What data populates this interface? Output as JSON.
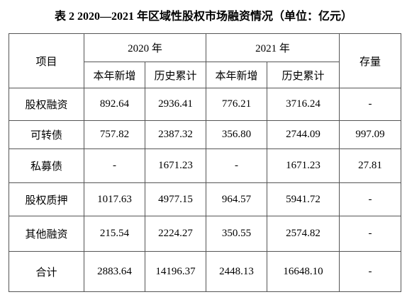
{
  "title": "表 2 2020—2021 年区域性股权市场融资情况（单位：亿元）",
  "table": {
    "item_header": "项目",
    "years": [
      "2020 年",
      "2021 年"
    ],
    "sub_headers": [
      "本年新增",
      "历史累计",
      "本年新增",
      "历史累计"
    ],
    "stock_header": "存量",
    "rows": [
      [
        "股权融资",
        "892.64",
        "2936.41",
        "776.21",
        "3716.24",
        "-"
      ],
      [
        "可转债",
        "757.82",
        "2387.32",
        "356.80",
        "2744.09",
        "997.09"
      ],
      [
        "私募债",
        "-",
        "1671.23",
        "-",
        "1671.23",
        "27.81"
      ],
      [
        "股权质押",
        "1017.63",
        "4977.15",
        "964.57",
        "5941.72",
        "-"
      ],
      [
        "其他融资",
        "215.54",
        "2224.27",
        "350.55",
        "2574.82",
        "-"
      ],
      [
        "合计",
        "2883.64",
        "14196.37",
        "2448.13",
        "16648.10",
        "-"
      ]
    ]
  }
}
